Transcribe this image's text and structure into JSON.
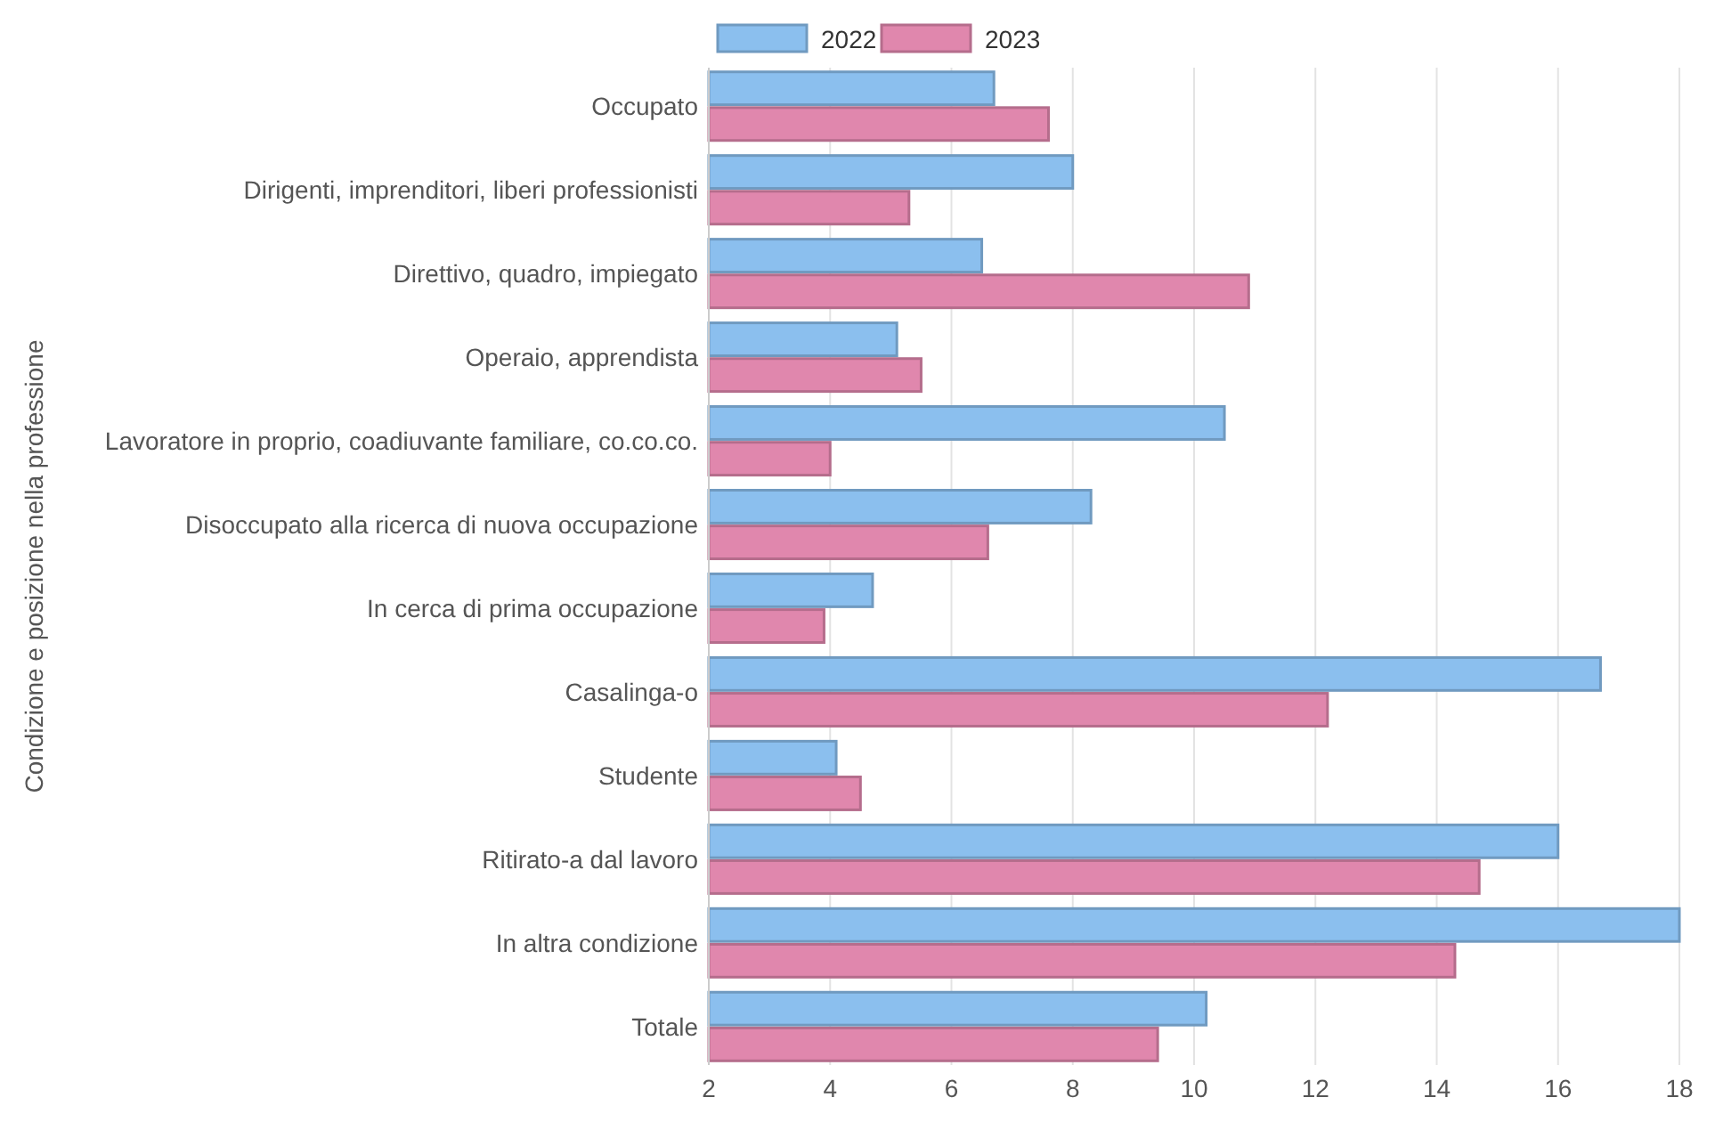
{
  "chart_data": {
    "type": "bar",
    "orientation": "horizontal",
    "ylabel": "Condizione e posizione nella professione",
    "categories": [
      "Occupato",
      "Dirigenti, imprenditori, liberi professionisti",
      "Direttivo, quadro, impiegato",
      "Operaio, apprendista",
      "Lavoratore in proprio, coadiuvante familiare, co.co.co.",
      "Disoccupato alla ricerca di nuova occupazione",
      "In cerca di prima occupazione",
      "Casalinga-o",
      "Studente",
      "Ritirato-a dal lavoro",
      "In altra condizione",
      "Totale"
    ],
    "series": [
      {
        "name": "2022",
        "color": "#8bbfee",
        "values": [
          6.7,
          8.0,
          6.5,
          5.1,
          10.5,
          8.3,
          4.7,
          16.7,
          4.1,
          16.0,
          18.0,
          10.2
        ]
      },
      {
        "name": "2023",
        "color": "#e087ad",
        "values": [
          7.6,
          5.3,
          10.9,
          5.5,
          4.0,
          6.6,
          3.9,
          12.2,
          4.5,
          14.7,
          14.3,
          9.4
        ]
      }
    ],
    "xlim": [
      2,
      18
    ],
    "xticks": [
      2,
      4,
      6,
      8,
      10,
      12,
      14,
      16,
      18
    ],
    "grid": "x",
    "legend": "top"
  }
}
